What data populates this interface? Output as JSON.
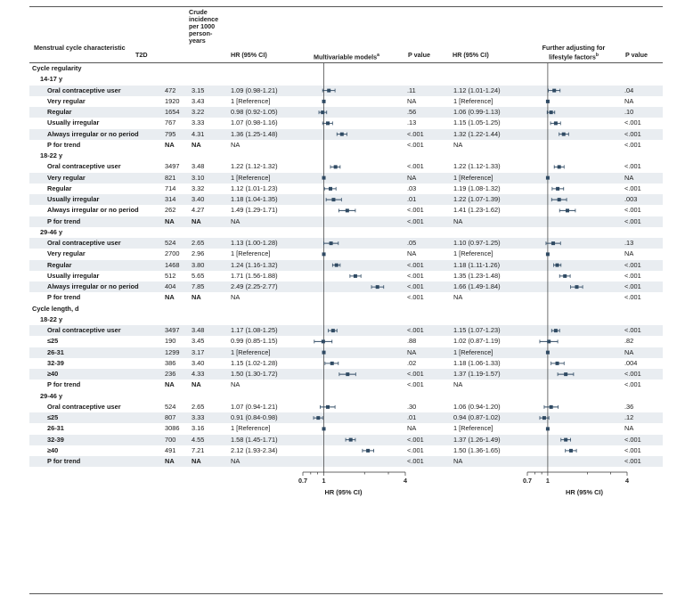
{
  "headers": {
    "characteristic": "Menstrual cycle characteristic",
    "t2d": "T2D",
    "crude": "Crude incidence per 1000 person-years",
    "hr1": "HR (95% CI)",
    "models1": "Multivariable models",
    "models1_sup": "a",
    "p1": "P value",
    "hr2": "HR (95% CI)",
    "models2": "Further adjusting for lifestyle factors",
    "models2_sup": "b",
    "p2": "P value"
  },
  "rows": [
    {
      "label": "Cycle regularity",
      "kind": "section"
    },
    {
      "label": "14-17 y",
      "kind": "sub"
    },
    {
      "label": "Oral contraceptive user",
      "t2d": "472",
      "crude": "3.15",
      "hr1": "1.09 (0.98-1.21)",
      "p1": ".11",
      "hr2": "1.12 (1.01-1.24)",
      "p2": ".04"
    },
    {
      "label": "Very regular",
      "t2d": "1920",
      "crude": "3.43",
      "hr1": "1 [Reference]",
      "p1": "NA",
      "hr2": "1 [Reference]",
      "p2": "NA"
    },
    {
      "label": "Regular",
      "t2d": "1654",
      "crude": "3.22",
      "hr1": "0.98 (0.92-1.05)",
      "p1": ".56",
      "hr2": "1.06 (0.99-1.13)",
      "p2": ".10"
    },
    {
      "label": "Usually irregular",
      "t2d": "767",
      "crude": "3.33",
      "hr1": "1.07 (0.98-1.16)",
      "p1": ".13",
      "hr2": "1.15 (1.05-1.25)",
      "p2": "<.001"
    },
    {
      "label": "Always irregular or no period",
      "t2d": "795",
      "crude": "4.31",
      "hr1": "1.36 (1.25-1.48)",
      "p1": "<.001",
      "hr2": "1.32 (1.22-1.44)",
      "p2": "<.001"
    },
    {
      "label": "P for trend",
      "t2d": "NA",
      "crude": "NA",
      "hr1": "NA",
      "p1": "<.001",
      "hr2": "NA",
      "p2": "<.001",
      "trend": true
    },
    {
      "label": "18-22 y",
      "kind": "sub"
    },
    {
      "label": "Oral contraceptive user",
      "t2d": "3497",
      "crude": "3.48",
      "hr1": "1.22 (1.12-1.32)",
      "p1": "<.001",
      "hr2": "1.22 (1.12-1.33)",
      "p2": "<.001"
    },
    {
      "label": "Very regular",
      "t2d": "821",
      "crude": "3.10",
      "hr1": "1 [Reference]",
      "p1": "NA",
      "hr2": "1 [Reference]",
      "p2": "NA"
    },
    {
      "label": "Regular",
      "t2d": "714",
      "crude": "3.32",
      "hr1": "1.12 (1.01-1.23)",
      "p1": ".03",
      "hr2": "1.19 (1.08-1.32)",
      "p2": "<.001"
    },
    {
      "label": "Usually irregular",
      "t2d": "314",
      "crude": "3.40",
      "hr1": "1.18 (1.04-1.35)",
      "p1": ".01",
      "hr2": "1.22 (1.07-1.39)",
      "p2": ".003"
    },
    {
      "label": "Always irregular or no period",
      "t2d": "262",
      "crude": "4.27",
      "hr1": "1.49 (1.29-1.71)",
      "p1": "<.001",
      "hr2": "1.41 (1.23-1.62)",
      "p2": "<.001"
    },
    {
      "label": "P for trend",
      "t2d": "NA",
      "crude": "NA",
      "hr1": "NA",
      "p1": "<.001",
      "hr2": "NA",
      "p2": "<.001",
      "trend": true
    },
    {
      "label": "29-46 y",
      "kind": "sub"
    },
    {
      "label": "Oral contraceptive user",
      "t2d": "524",
      "crude": "2.65",
      "hr1": "1.13 (1.00-1.28)",
      "p1": ".05",
      "hr2": "1.10 (0.97-1.25)",
      "p2": ".13"
    },
    {
      "label": "Very regular",
      "t2d": "2700",
      "crude": "2.96",
      "hr1": "1 [Reference]",
      "p1": "NA",
      "hr2": "1 [Reference]",
      "p2": "NA"
    },
    {
      "label": "Regular",
      "t2d": "1468",
      "crude": "3.80",
      "hr1": "1.24 (1.16-1.32)",
      "p1": "<.001",
      "hr2": "1.18 (1.11-1.26)",
      "p2": "<.001"
    },
    {
      "label": "Usually irregular",
      "t2d": "512",
      "crude": "5.65",
      "hr1": "1.71 (1.56-1.88)",
      "p1": "<.001",
      "hr2": "1.35 (1.23-1.48)",
      "p2": "<.001"
    },
    {
      "label": "Always irregular or no period",
      "t2d": "404",
      "crude": "7.85",
      "hr1": "2.49 (2.25-2.77)",
      "p1": "<.001",
      "hr2": "1.66 (1.49-1.84)",
      "p2": "<.001"
    },
    {
      "label": "P for trend",
      "t2d": "NA",
      "crude": "NA",
      "hr1": "NA",
      "p1": "<.001",
      "hr2": "NA",
      "p2": "<.001",
      "trend": true
    },
    {
      "label": "Cycle length, d",
      "kind": "section"
    },
    {
      "label": "18-22 y",
      "kind": "sub"
    },
    {
      "label": "Oral contraceptive user",
      "t2d": "3497",
      "crude": "3.48",
      "hr1": "1.17 (1.08-1.25)",
      "p1": "<.001",
      "hr2": "1.15 (1.07-1.23)",
      "p2": "<.001"
    },
    {
      "label": "≤25",
      "t2d": "190",
      "crude": "3.45",
      "hr1": "0.99 (0.85-1.15)",
      "p1": ".88",
      "hr2": "1.02 (0.87-1.19)",
      "p2": ".82"
    },
    {
      "label": "26-31",
      "t2d": "1299",
      "crude": "3.17",
      "hr1": "1 [Reference]",
      "p1": "NA",
      "hr2": "1 [Reference]",
      "p2": "NA"
    },
    {
      "label": "32-39",
      "t2d": "386",
      "crude": "3.40",
      "hr1": "1.15 (1.02-1.28)",
      "p1": ".02",
      "hr2": "1.18 (1.06-1.33)",
      "p2": ".004"
    },
    {
      "label": "≥40",
      "t2d": "236",
      "crude": "4.33",
      "hr1": "1.50 (1.30-1.72)",
      "p1": "<.001",
      "hr2": "1.37 (1.19-1.57)",
      "p2": "<.001"
    },
    {
      "label": "P for trend",
      "t2d": "NA",
      "crude": "NA",
      "hr1": "NA",
      "p1": "<.001",
      "hr2": "NA",
      "p2": "<.001",
      "trend": true
    },
    {
      "label": "29-46 y",
      "kind": "sub"
    },
    {
      "label": "Oral contraceptive user",
      "t2d": "524",
      "crude": "2.65",
      "hr1": "1.07 (0.94-1.21)",
      "p1": ".30",
      "hr2": "1.06 (0.94-1.20)",
      "p2": ".36"
    },
    {
      "label": "≤25",
      "t2d": "807",
      "crude": "3.33",
      "hr1": "0.91 (0.84-0.98)",
      "p1": ".01",
      "hr2": "0.94 (0.87-1.02)",
      "p2": ".12"
    },
    {
      "label": "26-31",
      "t2d": "3086",
      "crude": "3.16",
      "hr1": "1 [Reference]",
      "p1": "NA",
      "hr2": "1 [Reference]",
      "p2": "NA"
    },
    {
      "label": "32-39",
      "t2d": "700",
      "crude": "4.55",
      "hr1": "1.58 (1.45-1.71)",
      "p1": "<.001",
      "hr2": "1.37 (1.26-1.49)",
      "p2": "<.001"
    },
    {
      "label": "≥40",
      "t2d": "491",
      "crude": "7.21",
      "hr1": "2.12 (1.93-2.34)",
      "p1": "<.001",
      "hr2": "1.50 (1.36-1.65)",
      "p2": "<.001"
    },
    {
      "label": "P for trend",
      "t2d": "NA",
      "crude": "NA",
      "hr1": "NA",
      "p1": "<.001",
      "hr2": "NA",
      "p2": "<.001",
      "trend": true
    }
  ],
  "chart_data": [
    {
      "type": "forest",
      "scale": "log",
      "xlabel": "HR (95% CI)",
      "xlim": [
        0.7,
        4
      ],
      "xticks": [
        "0.7",
        "1",
        "4"
      ],
      "reference_line": 1,
      "points": [
        null,
        null,
        {
          "hr": 1.09,
          "lo": 0.98,
          "hi": 1.21
        },
        {
          "hr": 1,
          "lo": 1,
          "hi": 1
        },
        {
          "hr": 0.98,
          "lo": 0.92,
          "hi": 1.05
        },
        {
          "hr": 1.07,
          "lo": 0.98,
          "hi": 1.16
        },
        {
          "hr": 1.36,
          "lo": 1.25,
          "hi": 1.48
        },
        null,
        null,
        {
          "hr": 1.22,
          "lo": 1.12,
          "hi": 1.32
        },
        {
          "hr": 1,
          "lo": 1,
          "hi": 1
        },
        {
          "hr": 1.12,
          "lo": 1.01,
          "hi": 1.23
        },
        {
          "hr": 1.18,
          "lo": 1.04,
          "hi": 1.35
        },
        {
          "hr": 1.49,
          "lo": 1.29,
          "hi": 1.71
        },
        null,
        null,
        {
          "hr": 1.13,
          "lo": 1.0,
          "hi": 1.28
        },
        {
          "hr": 1,
          "lo": 1,
          "hi": 1
        },
        {
          "hr": 1.24,
          "lo": 1.16,
          "hi": 1.32
        },
        {
          "hr": 1.71,
          "lo": 1.56,
          "hi": 1.88
        },
        {
          "hr": 2.49,
          "lo": 2.25,
          "hi": 2.77
        },
        null,
        null,
        null,
        {
          "hr": 1.17,
          "lo": 1.08,
          "hi": 1.25
        },
        {
          "hr": 0.99,
          "lo": 0.85,
          "hi": 1.15
        },
        {
          "hr": 1,
          "lo": 1,
          "hi": 1
        },
        {
          "hr": 1.15,
          "lo": 1.02,
          "hi": 1.28
        },
        {
          "hr": 1.5,
          "lo": 1.3,
          "hi": 1.72
        },
        null,
        null,
        {
          "hr": 1.07,
          "lo": 0.94,
          "hi": 1.21
        },
        {
          "hr": 0.91,
          "lo": 0.84,
          "hi": 0.98
        },
        {
          "hr": 1,
          "lo": 1,
          "hi": 1
        },
        {
          "hr": 1.58,
          "lo": 1.45,
          "hi": 1.71
        },
        {
          "hr": 2.12,
          "lo": 1.93,
          "hi": 2.34
        },
        null
      ]
    },
    {
      "type": "forest",
      "scale": "log",
      "xlabel": "HR (95% CI)",
      "xlim": [
        0.7,
        4
      ],
      "xticks": [
        "0.7",
        "1",
        "4"
      ],
      "reference_line": 1,
      "points": [
        null,
        null,
        {
          "hr": 1.12,
          "lo": 1.01,
          "hi": 1.24
        },
        {
          "hr": 1,
          "lo": 1,
          "hi": 1
        },
        {
          "hr": 1.06,
          "lo": 0.99,
          "hi": 1.13
        },
        {
          "hr": 1.15,
          "lo": 1.05,
          "hi": 1.25
        },
        {
          "hr": 1.32,
          "lo": 1.22,
          "hi": 1.44
        },
        null,
        null,
        {
          "hr": 1.22,
          "lo": 1.12,
          "hi": 1.33
        },
        {
          "hr": 1,
          "lo": 1,
          "hi": 1
        },
        {
          "hr": 1.19,
          "lo": 1.08,
          "hi": 1.32
        },
        {
          "hr": 1.22,
          "lo": 1.07,
          "hi": 1.39
        },
        {
          "hr": 1.41,
          "lo": 1.23,
          "hi": 1.62
        },
        null,
        null,
        {
          "hr": 1.1,
          "lo": 0.97,
          "hi": 1.25
        },
        {
          "hr": 1,
          "lo": 1,
          "hi": 1
        },
        {
          "hr": 1.18,
          "lo": 1.11,
          "hi": 1.26
        },
        {
          "hr": 1.35,
          "lo": 1.23,
          "hi": 1.48
        },
        {
          "hr": 1.66,
          "lo": 1.49,
          "hi": 1.84
        },
        null,
        null,
        null,
        {
          "hr": 1.15,
          "lo": 1.07,
          "hi": 1.23
        },
        {
          "hr": 1.02,
          "lo": 0.87,
          "hi": 1.19
        },
        {
          "hr": 1,
          "lo": 1,
          "hi": 1
        },
        {
          "hr": 1.18,
          "lo": 1.06,
          "hi": 1.33
        },
        {
          "hr": 1.37,
          "lo": 1.19,
          "hi": 1.57
        },
        null,
        null,
        {
          "hr": 1.06,
          "lo": 0.94,
          "hi": 1.2
        },
        {
          "hr": 0.94,
          "lo": 0.87,
          "hi": 1.02
        },
        {
          "hr": 1,
          "lo": 1,
          "hi": 1
        },
        {
          "hr": 1.37,
          "lo": 1.26,
          "hi": 1.49
        },
        {
          "hr": 1.5,
          "lo": 1.36,
          "hi": 1.65
        },
        null
      ]
    }
  ],
  "colors": {
    "marker": "#2f4a63",
    "band": "#e9edf1",
    "rule": "#555555"
  }
}
